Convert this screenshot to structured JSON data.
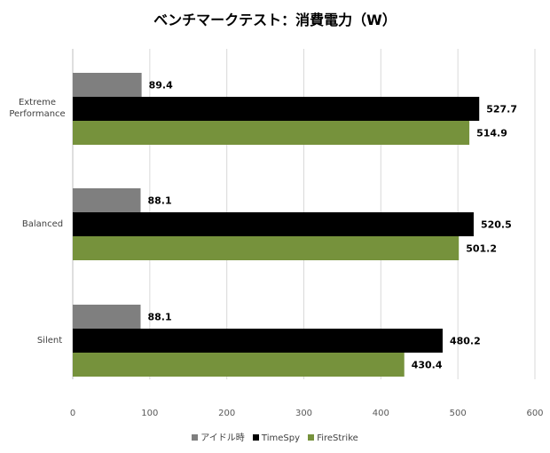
{
  "chart_data": {
    "type": "bar",
    "orientation": "horizontal",
    "title": "ベンチマークテスト：消費電力（W）",
    "categories": [
      "Extreme Performance",
      "Balanced",
      "Silent"
    ],
    "series": [
      {
        "name": "アイドル時",
        "color": "#7f7f7f",
        "values": [
          89.4,
          88.1,
          88.1
        ],
        "labels": [
          "89.4",
          "88.1",
          "88.1"
        ]
      },
      {
        "name": "TimeSpy",
        "color": "#000000",
        "values": [
          527.7,
          520.5,
          480.2
        ],
        "labels": [
          "527.7",
          "520.5",
          "480.2"
        ]
      },
      {
        "name": "FireStrike",
        "color": "#76923c",
        "values": [
          514.9,
          501.2,
          430.4
        ],
        "labels": [
          "514.9",
          "501.2",
          "430.4"
        ]
      }
    ],
    "xlim": [
      0,
      600
    ],
    "xticks": [
      "0",
      "100",
      "200",
      "300",
      "400",
      "500",
      "600"
    ],
    "grid": true,
    "legend_position": "bottom",
    "data_labels": true
  }
}
